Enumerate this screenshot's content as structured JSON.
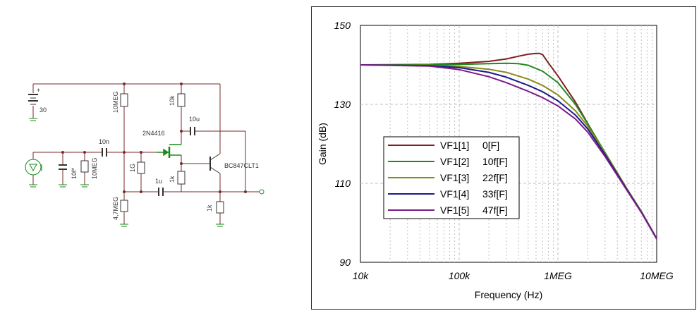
{
  "schematic": {
    "labels": {
      "vcc": "30",
      "r_bias_top": "10MEG",
      "r_drain": "10k",
      "c_feedback": "10u",
      "jfet": "2N4416",
      "c_in": "10n",
      "c_src": "10f*",
      "r_src": "10MEG",
      "r_gate": "1G",
      "c_bypass": "1u",
      "r_source": "1k",
      "bjt": "BC847CLT1",
      "r_bias_bottom": "4,7MEG",
      "r_emitter": "1k"
    }
  },
  "chart_data": {
    "type": "line",
    "xlabel": "Frequency (Hz)",
    "ylabel": "Gain (dB)",
    "xscale": "log",
    "xlim": [
      10000,
      10000000
    ],
    "ylim": [
      90,
      150
    ],
    "x_ticks": [
      10000,
      100000,
      1000000,
      10000000
    ],
    "x_tick_labels": [
      "10k",
      "100k",
      "1MEG",
      "10MEG"
    ],
    "y_ticks": [
      90,
      110,
      130,
      150
    ],
    "y_tick_labels": [
      "90",
      "110",
      "130",
      "150"
    ],
    "grid": true,
    "legend_position": "center-left",
    "series": [
      {
        "name": "VF1[1]",
        "param": "0[F]",
        "color": "#7f1f1f",
        "x": [
          10000,
          50000,
          100000,
          200000,
          300000,
          400000,
          500000,
          600000,
          650000,
          700000,
          800000,
          1000000,
          1500000,
          2000000,
          3000000,
          5000000,
          7000000,
          10000000
        ],
        "y": [
          140,
          140.1,
          140.4,
          140.9,
          141.5,
          142.2,
          142.7,
          142.9,
          142.9,
          142.6,
          140.5,
          137.2,
          130.6,
          125.2,
          117.6,
          108.5,
          102.8,
          96
        ]
      },
      {
        "name": "VF1[2]",
        "param": "10f[F]",
        "color": "#1f8a1f",
        "x": [
          10000,
          50000,
          100000,
          200000,
          300000,
          400000,
          500000,
          700000,
          1000000,
          1500000,
          2000000,
          3000000,
          5000000,
          7000000,
          10000000
        ],
        "y": [
          140,
          140,
          140.1,
          140.3,
          140.4,
          140.3,
          139.9,
          138.4,
          135.5,
          130,
          125.1,
          117.8,
          108.6,
          102.9,
          96
        ]
      },
      {
        "name": "VF1[3]",
        "param": "22f[F]",
        "color": "#8a8a1a",
        "x": [
          10000,
          50000,
          100000,
          200000,
          300000,
          500000,
          700000,
          1000000,
          1500000,
          2000000,
          3000000,
          5000000,
          7000000,
          10000000
        ],
        "y": [
          140,
          139.9,
          139.6,
          138.9,
          138.1,
          136.4,
          134.8,
          132.4,
          128.4,
          124.5,
          117.7,
          108.6,
          102.8,
          96
        ]
      },
      {
        "name": "VF1[4]",
        "param": "33f[F]",
        "color": "#1a1a8a",
        "x": [
          10000,
          50000,
          100000,
          200000,
          300000,
          500000,
          700000,
          1000000,
          1500000,
          2000000,
          3000000,
          5000000,
          7000000,
          10000000
        ],
        "y": [
          140,
          139.8,
          139.3,
          138.1,
          136.9,
          134.8,
          133.2,
          130.9,
          127.3,
          123.8,
          117.3,
          108.4,
          102.7,
          96
        ]
      },
      {
        "name": "VF1[5]",
        "param": "47f[F]",
        "color": "#7a1a8a",
        "x": [
          10000,
          50000,
          100000,
          200000,
          300000,
          500000,
          700000,
          1000000,
          1500000,
          2000000,
          3000000,
          5000000,
          7000000,
          10000000
        ],
        "y": [
          140,
          139.7,
          138.8,
          137,
          135.5,
          133.3,
          131.7,
          129.6,
          126.3,
          123,
          116.8,
          108.2,
          102.6,
          95.9
        ]
      }
    ]
  }
}
